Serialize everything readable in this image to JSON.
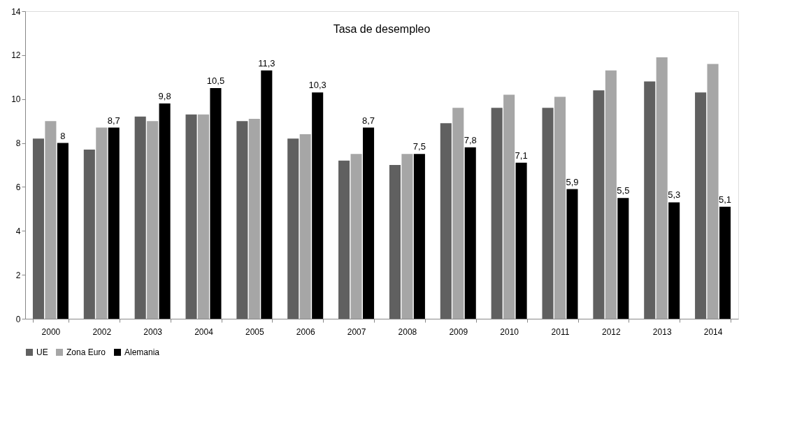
{
  "chart_data": {
    "type": "bar",
    "title": "Tasa de desempleo",
    "categories": [
      "2000",
      "2002",
      "2003",
      "2004",
      "2005",
      "2006",
      "2007",
      "2008",
      "2009",
      "2010",
      "2011",
      "2012",
      "2013",
      "2014"
    ],
    "series": [
      {
        "name": "UE",
        "color": "#606060",
        "values": [
          8.2,
          7.7,
          9.2,
          9.3,
          9.0,
          8.2,
          7.2,
          7.0,
          8.9,
          9.6,
          9.6,
          10.4,
          10.8,
          10.3
        ]
      },
      {
        "name": "Zona Euro",
        "color": "#a6a6a6",
        "values": [
          9.0,
          8.7,
          9.0,
          9.3,
          9.1,
          8.4,
          7.5,
          7.5,
          9.6,
          10.2,
          10.1,
          11.3,
          11.9,
          11.6
        ]
      },
      {
        "name": "Alemania",
        "color": "#000000",
        "values": [
          8,
          8.7,
          9.8,
          10.5,
          11.3,
          10.3,
          8.7,
          7.5,
          7.8,
          7.1,
          5.9,
          5.5,
          5.3,
          5.1
        ],
        "value_labels": [
          "8",
          "8,7",
          "9,8",
          "10,5",
          "11,3",
          "10,3",
          "8,7",
          "7,5",
          "7,8",
          "7,1",
          "5,9",
          "5,5",
          "5,3",
          "5,1"
        ]
      }
    ],
    "ylim": [
      0,
      14
    ],
    "yticks": [
      0,
      2,
      4,
      6,
      8,
      10,
      12,
      14
    ],
    "grid": false,
    "legend": "bottom"
  }
}
